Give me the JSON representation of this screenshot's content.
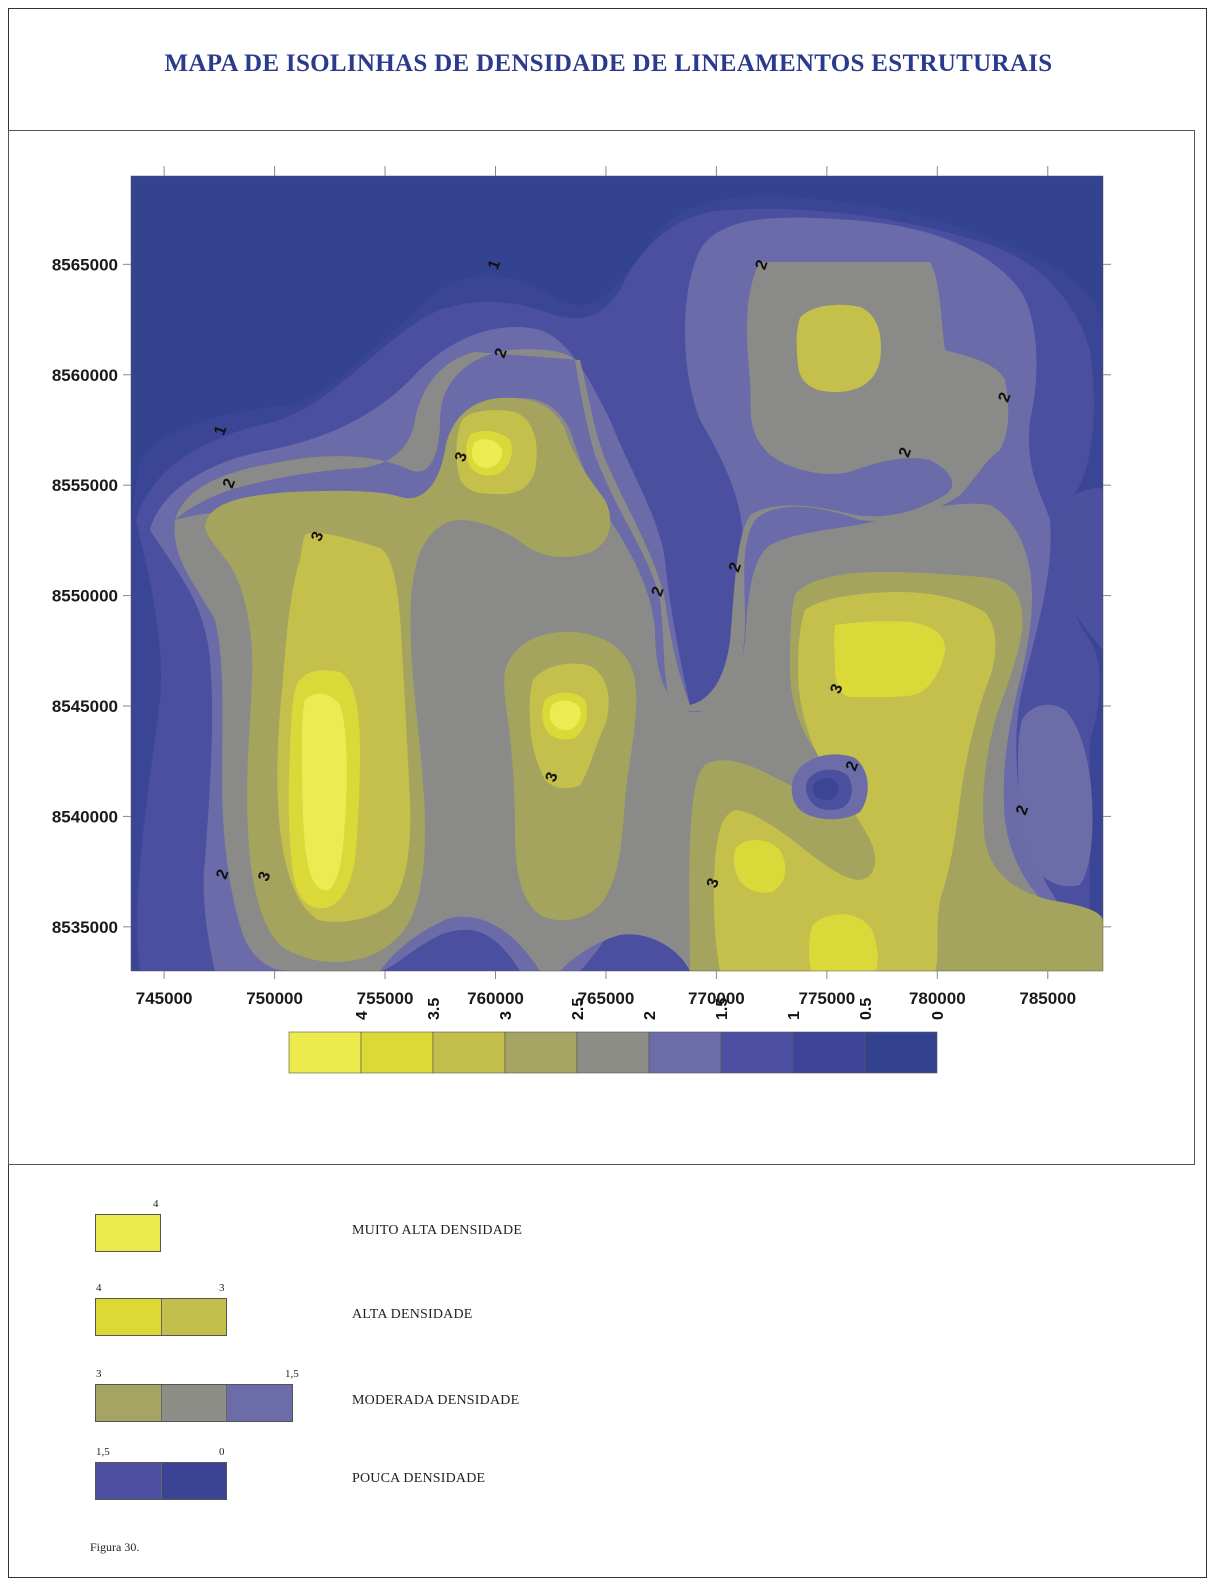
{
  "title": "MAPA DE ISOLINHAS  DE  DENSIDADE DE LINEAMENTOS ESTRUTURAIS",
  "map": {
    "x_axis": {
      "min": 743500,
      "max": 787500,
      "ticks": [
        "745000",
        "750000",
        "755000",
        "760000",
        "765000",
        "770000",
        "775000",
        "780000",
        "785000"
      ],
      "tick_values": [
        745000,
        750000,
        755000,
        760000,
        765000,
        770000,
        775000,
        780000,
        785000
      ]
    },
    "y_axis": {
      "min": 8533000,
      "max": 8569000,
      "ticks": [
        "8535000",
        "8540000",
        "8545000",
        "8550000",
        "8555000",
        "8560000",
        "8565000"
      ],
      "tick_values": [
        8535000,
        8540000,
        8545000,
        8550000,
        8555000,
        8560000,
        8565000
      ]
    },
    "contour_labels": [
      {
        "text": "1",
        "x": 759900,
        "y": 8565000
      },
      {
        "text": "1",
        "x": 747500,
        "y": 8557500
      },
      {
        "text": "2",
        "x": 760200,
        "y": 8561000
      },
      {
        "text": "2",
        "x": 772000,
        "y": 8565000
      },
      {
        "text": "2",
        "x": 747900,
        "y": 8555100
      },
      {
        "text": "2",
        "x": 783000,
        "y": 8559000
      },
      {
        "text": "2",
        "x": 778500,
        "y": 8556500
      },
      {
        "text": "2",
        "x": 767300,
        "y": 8550200
      },
      {
        "text": "2",
        "x": 770800,
        "y": 8551300
      },
      {
        "text": "2",
        "x": 776100,
        "y": 8542300
      },
      {
        "text": "2",
        "x": 783800,
        "y": 8540300
      },
      {
        "text": "2",
        "x": 747600,
        "y": 8537400
      },
      {
        "text": "3",
        "x": 758400,
        "y": 8556300
      },
      {
        "text": "3",
        "x": 751900,
        "y": 8552700
      },
      {
        "text": "3",
        "x": 775400,
        "y": 8545800
      },
      {
        "text": "3",
        "x": 762500,
        "y": 8541800
      },
      {
        "text": "3",
        "x": 749500,
        "y": 8537300
      },
      {
        "text": "3",
        "x": 769800,
        "y": 8537000
      }
    ]
  },
  "color_scale": {
    "labels": [
      "4",
      "3.5",
      "3",
      "2.5",
      "2",
      "1.5",
      "1",
      "0.5",
      "0"
    ],
    "colors": [
      "#ecea4c",
      "#dcd836",
      "#c4bf4c",
      "#a6a462",
      "#8e8e88",
      "#6c6ca8",
      "#4d50a0",
      "#3c4398",
      "#33428e"
    ]
  },
  "legend": [
    {
      "label": "MUITO ALTA  DENSIDADE",
      "min_label": "",
      "max_label": "4",
      "colors": [
        "#ecea4c"
      ]
    },
    {
      "label": "ALTA  DENSIDADE",
      "min_label": "4",
      "max_label": "3",
      "colors": [
        "#dcd836",
        "#c4bf4c"
      ]
    },
    {
      "label": "MODERADA DENSIDADE",
      "min_label": "3",
      "max_label": "1,5",
      "colors": [
        "#a6a462",
        "#8e8e88",
        "#6c6ca8"
      ]
    },
    {
      "label": "POUCA DENSIDADE",
      "min_label": "1,5",
      "max_label": "0",
      "colors": [
        "#4d50a0",
        "#3a4394"
      ]
    }
  ],
  "caption": "Figura 30."
}
